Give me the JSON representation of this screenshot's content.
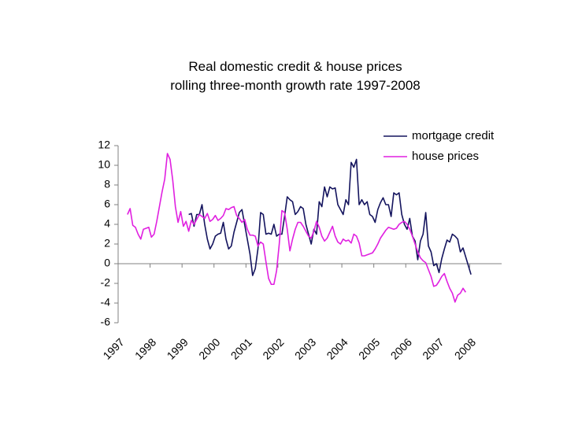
{
  "chart_data": {
    "type": "line",
    "title": "Real domestic credit & house prices",
    "subtitle": "rolling three-month growth rate 1997-2008",
    "categories": [
      "1997",
      null,
      null,
      null,
      null,
      null,
      null,
      null,
      null,
      null,
      null,
      null,
      "1998",
      null,
      null,
      null,
      null,
      null,
      null,
      null,
      null,
      null,
      null,
      null,
      "1999",
      null,
      null,
      null,
      null,
      null,
      null,
      null,
      null,
      null,
      null,
      null,
      "2000",
      null,
      null,
      null,
      null,
      null,
      null,
      null,
      null,
      null,
      null,
      null,
      "2001",
      null,
      null,
      null,
      null,
      null,
      null,
      null,
      null,
      null,
      null,
      null,
      "2002",
      null,
      null,
      null,
      null,
      null,
      null,
      null,
      null,
      null,
      null,
      null,
      "2003",
      null,
      null,
      null,
      null,
      null,
      null,
      null,
      null,
      null,
      null,
      null,
      "2004",
      null,
      null,
      null,
      null,
      null,
      null,
      null,
      null,
      null,
      null,
      null,
      "2005",
      null,
      null,
      null,
      null,
      null,
      null,
      null,
      null,
      null,
      null,
      null,
      "2006",
      null,
      null,
      null,
      null,
      null,
      null,
      null,
      null,
      null,
      null,
      null,
      "2007",
      null,
      null,
      null,
      null,
      null,
      null,
      null,
      null,
      null,
      null,
      null,
      "2008",
      null,
      null,
      null,
      null,
      null,
      null,
      null,
      null,
      null,
      null,
      null
    ],
    "series": [
      {
        "name": "mortgage credit",
        "color": "#14145e",
        "values": [
          null,
          null,
          null,
          null,
          null,
          null,
          null,
          null,
          null,
          null,
          null,
          null,
          null,
          null,
          null,
          null,
          null,
          null,
          null,
          null,
          null,
          null,
          null,
          null,
          null,
          null,
          5.0,
          5.1,
          3.8,
          5.0,
          5.0,
          6.0,
          4.0,
          2.5,
          1.5,
          2.0,
          2.8,
          3.0,
          3.1,
          4.2,
          2.5,
          1.5,
          1.8,
          3.2,
          4.2,
          5.2,
          5.5,
          4.0,
          2.5,
          1.0,
          -1.2,
          -0.5,
          1.5,
          5.2,
          5.0,
          3.0,
          3.1,
          3.0,
          4.0,
          2.8,
          3.0,
          3.0,
          4.8,
          6.8,
          6.5,
          6.3,
          5.0,
          5.3,
          5.8,
          5.6,
          4.0,
          3.0,
          2.0,
          3.5,
          3.0,
          6.3,
          5.8,
          7.8,
          6.8,
          7.8,
          7.6,
          7.7,
          6.0,
          5.5,
          5.0,
          6.5,
          6.0,
          10.3,
          9.8,
          10.6,
          6.0,
          6.5,
          6.0,
          6.3,
          5.0,
          4.8,
          4.2,
          5.5,
          6.2,
          6.7,
          6.0,
          6.0,
          4.8,
          7.2,
          7.0,
          7.2,
          5.0,
          4.0,
          3.5,
          4.6,
          2.8,
          2.3,
          0.4,
          2.3,
          3.0,
          5.2,
          1.8,
          1.2,
          -0.2,
          0.0,
          -0.9,
          0.5,
          1.5,
          2.4,
          2.2,
          3.0,
          2.8,
          2.5,
          1.2,
          1.6,
          0.7,
          -0.2,
          -1.1,
          null,
          null,
          null,
          null,
          null,
          null,
          null,
          null,
          null,
          null,
          null
        ]
      },
      {
        "name": "house prices",
        "color": "#e020e0",
        "values": [
          null,
          null,
          null,
          5.0,
          5.6,
          3.9,
          3.7,
          3.0,
          2.5,
          3.5,
          3.6,
          3.7,
          2.7,
          3.0,
          4.3,
          5.8,
          7.3,
          8.6,
          11.2,
          10.6,
          8.5,
          5.8,
          4.2,
          5.3,
          3.8,
          4.3,
          3.3,
          4.4,
          4.0,
          4.5,
          5.0,
          4.8,
          4.6,
          5.1,
          4.3,
          4.5,
          4.9,
          4.4,
          4.6,
          4.9,
          5.6,
          5.5,
          5.7,
          5.8,
          4.9,
          4.6,
          4.2,
          4.5,
          3.5,
          2.9,
          2.9,
          2.8,
          1.8,
          2.2,
          2.0,
          0.2,
          -1.5,
          -2.1,
          -2.1,
          -0.7,
          2.0,
          5.4,
          5.2,
          3.5,
          1.3,
          2.5,
          3.5,
          4.2,
          4.2,
          3.8,
          3.3,
          2.8,
          2.6,
          3.3,
          4.3,
          3.7,
          2.8,
          2.3,
          2.6,
          3.2,
          3.8,
          2.8,
          2.2,
          2.0,
          2.5,
          2.3,
          2.4,
          2.1,
          3.0,
          2.8,
          2.1,
          0.8,
          0.8,
          0.9,
          1.0,
          1.1,
          1.5,
          2.0,
          2.6,
          3.0,
          3.4,
          3.7,
          3.6,
          3.5,
          3.6,
          4.0,
          4.2,
          4.3,
          4.0,
          3.5,
          2.8,
          2.0,
          1.2,
          0.6,
          0.3,
          0.1,
          -0.6,
          -1.3,
          -2.3,
          -2.2,
          -1.8,
          -1.3,
          -1.0,
          -1.8,
          -2.5,
          -3.0,
          -3.9,
          -3.2,
          -3.0,
          -2.5,
          -2.9,
          null,
          null,
          null,
          null,
          null,
          null,
          null,
          null,
          null,
          null,
          null,
          null,
          null
        ]
      }
    ],
    "ylim": [
      -6,
      12
    ],
    "yticks": [
      -6,
      -4,
      -2,
      0,
      2,
      4,
      6,
      8,
      10,
      12
    ],
    "grid": false,
    "legend": "upper right"
  }
}
